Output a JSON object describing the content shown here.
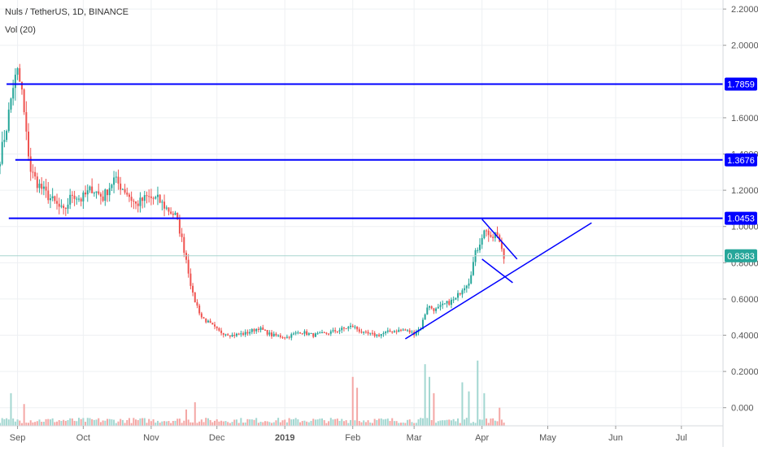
{
  "header": {
    "title": "Nuls / TetherUS, 1D, BINANCE",
    "volume_label": "Vol (20)"
  },
  "colors": {
    "up": "#26a69a",
    "down": "#ef5350",
    "vol_up": "#a3d7d1",
    "vol_down": "#f4a7a5",
    "level_line": "#0000ff",
    "current_price_line": "#a8d5cf",
    "current_price_badge": "#26a69a",
    "level_badge": "#0000ff",
    "grid": "#eef0f3",
    "axis_text": "#555555"
  },
  "chart_data": {
    "type": "candlestick",
    "pair": "NULS/USDT",
    "timeframe": "1D",
    "exchange": "BINANCE",
    "y_axis": {
      "range": [
        -0.1,
        2.25
      ],
      "ticks": [
        "0.000",
        "0.2000",
        "0.4000",
        "0.6000",
        "0.8000",
        "1.0000",
        "1.2000",
        "1.4000",
        "1.6000",
        "2.0000",
        "2.2000"
      ],
      "tick_values": [
        0.0,
        0.2,
        0.4,
        0.6,
        0.8,
        1.0,
        1.2,
        1.4,
        1.6,
        2.0,
        2.2
      ]
    },
    "x_axis": {
      "labels": [
        "Sep",
        "Oct",
        "Nov",
        "Dec",
        "2019",
        "Feb",
        "Mar",
        "Apr",
        "May",
        "Jun",
        "Jul"
      ],
      "dates": [
        "2018-09-01",
        "2018-10-01",
        "2018-11-01",
        "2018-12-01",
        "2019-01-01",
        "2019-02-01",
        "2019-03-01",
        "2019-04-01",
        "2019-05-01",
        "2019-06-01",
        "2019-07-01"
      ],
      "range": [
        "2018-08-24",
        "2019-07-20"
      ]
    },
    "price_path": [
      [
        "2018-08-24",
        1.38
      ],
      [
        "2018-08-27",
        1.55
      ],
      [
        "2018-08-30",
        1.78
      ],
      [
        "2018-09-01",
        1.85
      ],
      [
        "2018-09-03",
        1.74
      ],
      [
        "2018-09-05",
        1.5
      ],
      [
        "2018-09-07",
        1.31
      ],
      [
        "2018-09-10",
        1.24
      ],
      [
        "2018-09-14",
        1.18
      ],
      [
        "2018-09-18",
        1.13
      ],
      [
        "2018-09-22",
        1.08
      ],
      [
        "2018-09-26",
        1.18
      ],
      [
        "2018-09-30",
        1.15
      ],
      [
        "2018-10-05",
        1.21
      ],
      [
        "2018-10-10",
        1.16
      ],
      [
        "2018-10-15",
        1.26
      ],
      [
        "2018-10-20",
        1.2
      ],
      [
        "2018-10-25",
        1.12
      ],
      [
        "2018-10-30",
        1.16
      ],
      [
        "2018-11-04",
        1.15
      ],
      [
        "2018-11-08",
        1.1
      ],
      [
        "2018-11-12",
        1.06
      ],
      [
        "2018-11-14",
        0.98
      ],
      [
        "2018-11-17",
        0.82
      ],
      [
        "2018-11-20",
        0.62
      ],
      [
        "2018-11-24",
        0.5
      ],
      [
        "2018-11-28",
        0.46
      ],
      [
        "2018-12-02",
        0.42
      ],
      [
        "2018-12-08",
        0.4
      ],
      [
        "2018-12-14",
        0.41
      ],
      [
        "2018-12-20",
        0.44
      ],
      [
        "2018-12-26",
        0.4
      ],
      [
        "2019-01-02",
        0.39
      ],
      [
        "2019-01-08",
        0.42
      ],
      [
        "2019-01-14",
        0.4
      ],
      [
        "2019-01-20",
        0.41
      ],
      [
        "2019-01-26",
        0.43
      ],
      [
        "2019-02-01",
        0.45
      ],
      [
        "2019-02-06",
        0.41
      ],
      [
        "2019-02-12",
        0.4
      ],
      [
        "2019-02-18",
        0.42
      ],
      [
        "2019-02-24",
        0.43
      ],
      [
        "2019-03-01",
        0.41
      ],
      [
        "2019-03-04",
        0.44
      ],
      [
        "2019-03-07",
        0.56
      ],
      [
        "2019-03-11",
        0.54
      ],
      [
        "2019-03-15",
        0.57
      ],
      [
        "2019-03-20",
        0.6
      ],
      [
        "2019-03-23",
        0.66
      ],
      [
        "2019-03-26",
        0.7
      ],
      [
        "2019-03-29",
        0.85
      ],
      [
        "2019-04-01",
        0.95
      ],
      [
        "2019-04-03",
        0.99
      ],
      [
        "2019-04-05",
        0.92
      ],
      [
        "2019-04-07",
        0.96
      ],
      [
        "2019-04-09",
        0.92
      ],
      [
        "2019-04-10",
        0.88
      ],
      [
        "2019-04-11",
        0.84
      ]
    ],
    "volume_spikes": [
      [
        "2018-08-29",
        0.18
      ],
      [
        "2018-09-04",
        0.12
      ],
      [
        "2018-11-17",
        0.09
      ],
      [
        "2018-11-21",
        0.13
      ],
      [
        "2019-02-01",
        0.27
      ],
      [
        "2019-02-03",
        0.21
      ],
      [
        "2019-03-06",
        0.34
      ],
      [
        "2019-03-08",
        0.27
      ],
      [
        "2019-03-10",
        0.18
      ],
      [
        "2019-03-23",
        0.24
      ],
      [
        "2019-03-26",
        0.19
      ],
      [
        "2019-03-30",
        0.36
      ],
      [
        "2019-04-02",
        0.18
      ],
      [
        "2019-04-09",
        0.1
      ]
    ],
    "volume_scale": "relative",
    "horizontal_levels": [
      {
        "value": 1.7859,
        "label": "1.7859",
        "from": "2018-08-27"
      },
      {
        "value": 1.3676,
        "label": "1.3676",
        "from": "2018-08-31"
      },
      {
        "value": 1.0453,
        "label": "1.0453",
        "from": "2018-08-28"
      }
    ],
    "current_price": {
      "value": 0.8383,
      "label": "0.8383"
    },
    "trendlines": [
      {
        "from": [
          "2019-02-25",
          0.38
        ],
        "to": [
          "2019-05-21",
          1.02
        ]
      },
      {
        "from": [
          "2019-04-01",
          1.04
        ],
        "to": [
          "2019-04-17",
          0.82
        ]
      },
      {
        "from": [
          "2019-04-01",
          0.82
        ],
        "to": [
          "2019-04-15",
          0.69
        ]
      }
    ],
    "grid": true
  }
}
